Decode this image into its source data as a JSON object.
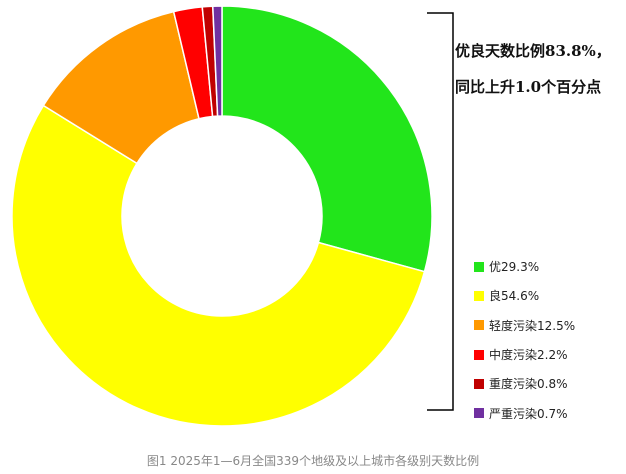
{
  "chart_data": {
    "type": "pie",
    "donut": true,
    "start": "top, clockwise",
    "categories": [
      "优",
      "良",
      "轻度污染",
      "中度污染",
      "重度污染",
      "严重污染"
    ],
    "values": [
      29.3,
      54.6,
      12.5,
      2.2,
      0.8,
      0.7
    ],
    "colors": [
      "#22e51b",
      "#ffff00",
      "#ff9900",
      "#ff0000",
      "#c00000",
      "#7030a0"
    ],
    "legend_labels": [
      "优29.3%",
      "良54.6%",
      "轻度污染12.5%",
      "中度污染2.2%",
      "重度污染0.8%",
      "严重污染0.7%"
    ],
    "legend_position": "right",
    "annotation": [
      "优良天数比例83.8%，",
      "同比上升1.0个百分点"
    ],
    "caption": "图1  2025年1—6月全国339个地级及以上城市各级别天数比例"
  }
}
